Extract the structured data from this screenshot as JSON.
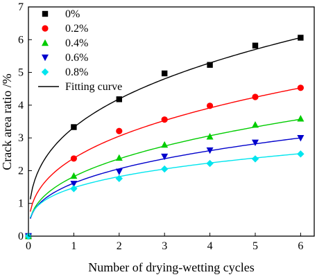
{
  "chart_data": {
    "type": "scatter",
    "title": "",
    "xlabel": "Number of drying-wetting cycles",
    "ylabel": "Crack area ratio /%",
    "xlim": [
      0,
      6.3
    ],
    "ylim": [
      0,
      7
    ],
    "xticks": [
      0,
      1,
      2,
      3,
      4,
      5,
      6
    ],
    "yticks": [
      0,
      1,
      2,
      3,
      4,
      5,
      6,
      7
    ],
    "grid": false,
    "legend_position": "top-left",
    "series": [
      {
        "name": "0%",
        "color": "#000000",
        "marker": "square",
        "x": [
          0,
          1,
          2,
          3,
          4,
          5,
          6
        ],
        "y": [
          0,
          3.33,
          4.18,
          4.97,
          5.23,
          5.82,
          6.06
        ],
        "fit": {
          "a": 3.32,
          "b": 0.336
        }
      },
      {
        "name": "0.2%",
        "color": "#ff0000",
        "marker": "circle",
        "x": [
          0,
          1,
          2,
          3,
          4,
          5,
          6
        ],
        "y": [
          0,
          2.37,
          3.21,
          3.56,
          3.98,
          4.25,
          4.53
        ],
        "fit": {
          "a": 2.38,
          "b": 0.359
        }
      },
      {
        "name": "0.4%",
        "color": "#00cc00",
        "marker": "triangle-up",
        "x": [
          0,
          1,
          2,
          3,
          4,
          5,
          6
        ],
        "y": [
          0,
          1.84,
          2.39,
          2.79,
          3.04,
          3.4,
          3.59
        ],
        "fit": {
          "a": 1.82,
          "b": 0.376
        }
      },
      {
        "name": "0.6%",
        "color": "#0000cc",
        "marker": "triangle-down",
        "x": [
          0,
          1,
          2,
          3,
          4,
          5,
          6
        ],
        "y": [
          0,
          1.6,
          1.97,
          2.43,
          2.62,
          2.86,
          3.0
        ],
        "fit": {
          "a": 1.62,
          "b": 0.344
        }
      },
      {
        "name": "0.8%",
        "color": "#00e5ee",
        "marker": "diamond",
        "x": [
          0,
          1,
          2,
          3,
          4,
          5,
          6
        ],
        "y": [
          0,
          1.45,
          1.76,
          2.05,
          2.22,
          2.36,
          2.51
        ],
        "fit": {
          "a": 1.48,
          "b": 0.297
        }
      }
    ],
    "fitting_curve_label": "Fitting curve"
  }
}
